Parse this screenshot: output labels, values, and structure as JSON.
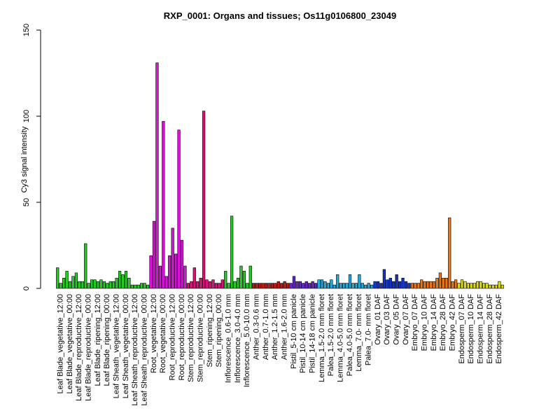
{
  "chart_data": {
    "type": "bar",
    "title": "RXP_0001: Organs and tissues; Os11g0106800_23049",
    "xlabel": "",
    "ylabel": "Cy3 signal intensity",
    "ylim": [
      0,
      150
    ],
    "yticks": [
      0,
      50,
      100,
      150
    ],
    "groups": [
      {
        "label": "Leaf Blade_vegetative_12:00",
        "color": "#22cc22",
        "values": [
          12,
          3,
          6
        ]
      },
      {
        "label": "Leaf Blade_vegetative_00:00",
        "color": "#22cc22",
        "values": [
          10,
          4,
          7
        ]
      },
      {
        "label": "Leaf Blade_reproductive_12:00",
        "color": "#22cc22",
        "values": [
          9,
          4,
          4
        ]
      },
      {
        "label": "Leaf Blade_reproductive_00:00",
        "color": "#22cc22",
        "values": [
          26,
          3,
          5
        ]
      },
      {
        "label": "Leaf Blade_ripening_12:00",
        "color": "#22cc22",
        "values": [
          5,
          4,
          5
        ]
      },
      {
        "label": "Leaf Blade_ripening_00:00",
        "color": "#22cc22",
        "values": [
          4,
          3,
          4
        ]
      },
      {
        "label": "Leaf Sheath_vegetative_12:00",
        "color": "#22cc22",
        "values": [
          4,
          6,
          10
        ]
      },
      {
        "label": "Leaf Sheath_vegetative_00:00",
        "color": "#22cc22",
        "values": [
          8,
          10,
          6
        ]
      },
      {
        "label": "Leaf Sheath_reproductive_12:00",
        "color": "#22cc22",
        "values": [
          2,
          2,
          2
        ]
      },
      {
        "label": "Leaf Sheath_reproductive_00:00",
        "color": "#22cc22",
        "values": [
          3,
          3,
          2
        ]
      },
      {
        "label": "Root_vegetative_12:00",
        "color": "#dd11dd",
        "values": [
          19,
          39,
          131
        ]
      },
      {
        "label": "Root_vegetative_00:00",
        "color": "#dd11dd",
        "values": [
          13,
          97,
          7
        ]
      },
      {
        "label": "Root_reproductive_12:00",
        "color": "#dd11dd",
        "values": [
          19,
          35,
          20
        ]
      },
      {
        "label": "Root_reproductive_00:00",
        "color": "#dd11dd",
        "values": [
          92,
          28,
          13
        ]
      },
      {
        "label": "Stem_reproductive_12:00",
        "color": "#dd1177",
        "values": [
          3,
          4,
          12
        ]
      },
      {
        "label": "Stem_reproductive_00:00",
        "color": "#dd1177",
        "values": [
          4,
          6,
          103
        ]
      },
      {
        "label": "Stem_ripening_12:00",
        "color": "#dd1177",
        "values": [
          5,
          4,
          5
        ]
      },
      {
        "label": "Stem_ripening_00:00",
        "color": "#dd1177",
        "values": [
          3,
          3,
          5
        ]
      },
      {
        "label": "Inflorescence_0.6-1.0 mm",
        "color": "#22cc22",
        "values": [
          10,
          3,
          42
        ]
      },
      {
        "label": "Inflorescence_3.0-4.0 mm",
        "color": "#22cc22",
        "values": [
          4,
          6,
          13
        ]
      },
      {
        "label": "Inflorescence_5.0-10.0 mm",
        "color": "#22cc22",
        "values": [
          10,
          3,
          13
        ]
      },
      {
        "label": "Anther_0.3-0.6 mm",
        "color": "#cc1111",
        "values": [
          3,
          3,
          3
        ]
      },
      {
        "label": "Anther_0.7-1.0 mm",
        "color": "#cc1111",
        "values": [
          3,
          3,
          3
        ]
      },
      {
        "label": "Anther_1.2-1.5 mm",
        "color": "#cc1111",
        "values": [
          3,
          3,
          4
        ]
      },
      {
        "label": "Anther_1.6-2.0 mm",
        "color": "#cc1111",
        "values": [
          3,
          4,
          3
        ]
      },
      {
        "label": "Pistil_5-10 cm panicle",
        "color": "#6622cc",
        "values": [
          3,
          7,
          4
        ]
      },
      {
        "label": "Pistil_10-14 cm panicle",
        "color": "#6622cc",
        "values": [
          4,
          3,
          4
        ]
      },
      {
        "label": "Pistil_14-18 cm panicle",
        "color": "#6622cc",
        "values": [
          3,
          4,
          3
        ]
      },
      {
        "label": "Lemma_1.5-2.0 mm floret",
        "color": "#22aadd",
        "values": [
          5,
          5,
          4
        ]
      },
      {
        "label": "Palea_1.5-2.0 mm floret",
        "color": "#22aadd",
        "values": [
          3,
          5,
          2
        ]
      },
      {
        "label": "Lemma_4.0-5.0 mm floret",
        "color": "#22aadd",
        "values": [
          8,
          3,
          3
        ]
      },
      {
        "label": "Palea_4.0-5.0 mm floret",
        "color": "#22aadd",
        "values": [
          3,
          8,
          3
        ]
      },
      {
        "label": "Lemma_7.0- mm floret",
        "color": "#22aadd",
        "values": [
          3,
          8,
          3
        ]
      },
      {
        "label": "Palea_7.0- mm floret",
        "color": "#22aadd",
        "values": [
          2,
          3,
          2
        ]
      },
      {
        "label": "Ovary_01 DAF",
        "color": "#1133cc",
        "values": [
          4,
          4,
          3
        ]
      },
      {
        "label": "Ovary_03 DAF",
        "color": "#1133cc",
        "values": [
          11,
          5,
          6
        ]
      },
      {
        "label": "Ovary_05 DAF",
        "color": "#1133cc",
        "values": [
          4,
          8,
          4
        ]
      },
      {
        "label": "Ovary_07 DAF",
        "color": "#1133cc",
        "values": [
          6,
          4,
          3
        ]
      },
      {
        "label": "Embryo_07 DAF",
        "color": "#ee7711",
        "values": [
          3,
          3,
          3
        ]
      },
      {
        "label": "Embryo_10 DAF",
        "color": "#ee7711",
        "values": [
          5,
          4,
          4
        ]
      },
      {
        "label": "Embryo_14 DAF",
        "color": "#ee7711",
        "values": [
          4,
          4,
          6
        ]
      },
      {
        "label": "Embryo_28 DAF",
        "color": "#ee7711",
        "values": [
          9,
          6,
          6
        ]
      },
      {
        "label": "Embryo_42 DAF",
        "color": "#ee7711",
        "values": [
          41,
          4,
          5
        ]
      },
      {
        "label": "Endosperm_07 DAF",
        "color": "#dddd11",
        "values": [
          3,
          5,
          4
        ]
      },
      {
        "label": "Endosperm_10 DAF",
        "color": "#dddd11",
        "values": [
          3,
          3,
          3
        ]
      },
      {
        "label": "Endosperm_14 DAF",
        "color": "#dddd11",
        "values": [
          4,
          4,
          3
        ]
      },
      {
        "label": "Endosperm_28 DAF",
        "color": "#dddd11",
        "values": [
          3,
          2,
          2
        ]
      },
      {
        "label": "Endosperm_42 DAF",
        "color": "#dddd11",
        "values": [
          2,
          4,
          2
        ]
      }
    ]
  }
}
